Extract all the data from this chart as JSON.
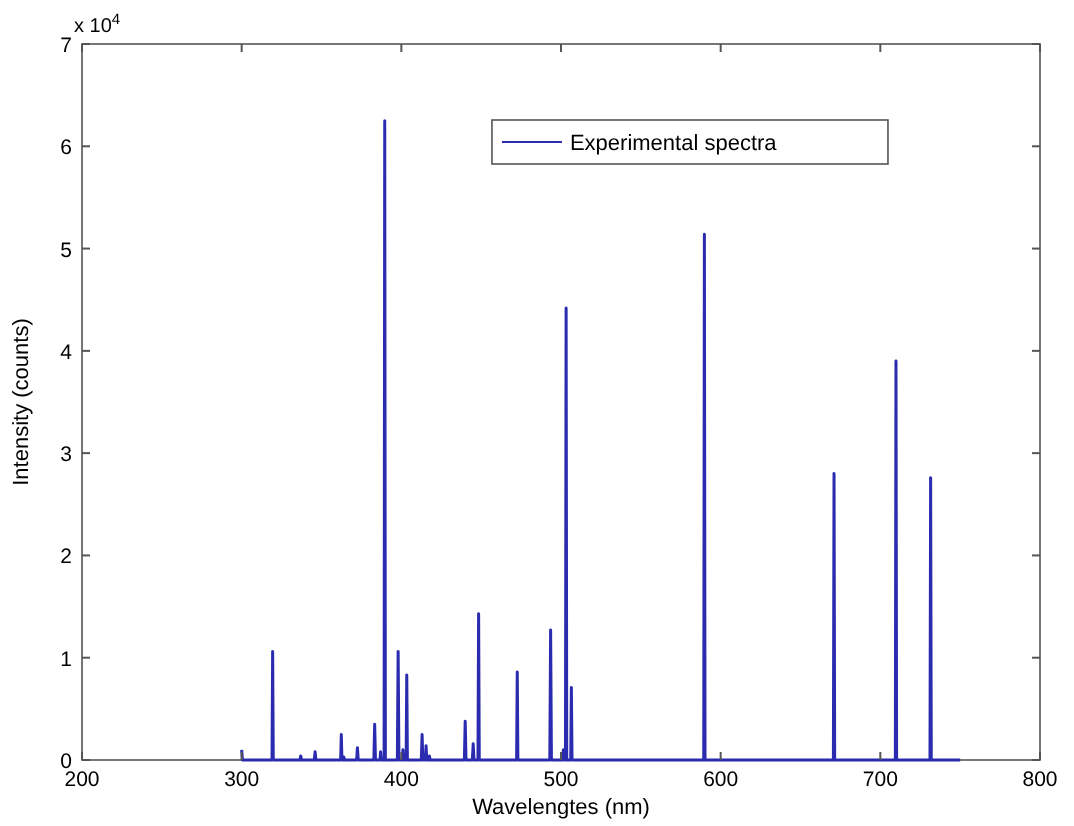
{
  "chart_data": {
    "type": "line",
    "xlabel": "Wavelengtes (nm)",
    "ylabel": "Intensity (counts)",
    "annotations": [
      "x 10$^{4}$"
    ],
    "legend": "top",
    "xlim": [
      200,
      800
    ],
    "xticks": [
      200,
      300,
      400,
      500,
      600,
      700,
      800
    ],
    "ylim": [
      0,
      7
    ],
    "yticks": [
      0,
      1,
      2,
      3,
      4,
      5,
      6,
      7
    ],
    "series": [
      {
        "name": "Experimental spectra",
        "color": "#2b2bb0",
        "x": [
          300,
          300.5,
          301,
          319,
          319.4,
          319.8,
          336.5,
          337,
          337.5,
          345.5,
          346,
          346.5,
          362,
          362.4,
          362.8,
          363.6,
          364,
          364.4,
          372,
          372.5,
          373,
          382.8,
          383.3,
          383.8,
          386.6,
          387,
          387.4,
          389.2,
          389.6,
          390,
          397.5,
          398,
          398.5,
          400.6,
          401,
          401.4,
          403,
          403.4,
          403.8,
          412.5,
          413,
          413.5,
          415.1,
          415.5,
          415.9,
          417.2,
          417.6,
          418,
          439.5,
          440,
          440.5,
          444.5,
          445,
          445.5,
          448,
          448.4,
          448.8,
          472.2,
          472.6,
          473,
          493,
          493.5,
          494,
          501.1,
          501.5,
          501.9,
          502.8,
          503.2,
          503.6,
          506.1,
          506.5,
          506.9,
          589.4,
          589.8,
          590.2,
          670.6,
          671,
          671.4,
          709.4,
          709.8,
          710.2,
          731.1,
          731.5,
          731.9,
          750
        ],
        "values": [
          0.1,
          0,
          0,
          0,
          1.06,
          0,
          0,
          0.04,
          0,
          0,
          0.08,
          0,
          0,
          0.25,
          0,
          0,
          0.03,
          0,
          0,
          0.12,
          0,
          0,
          0.35,
          0,
          0,
          0.08,
          0,
          0,
          6.25,
          0,
          0,
          1.06,
          0,
          0,
          0.1,
          0,
          0,
          0.83,
          0,
          0,
          0.25,
          0,
          0,
          0.14,
          0,
          0,
          0.04,
          0,
          0,
          0.38,
          0,
          0,
          0.16,
          0,
          0,
          1.43,
          0,
          0,
          0.86,
          0,
          0,
          1.27,
          0,
          0,
          0.1,
          0,
          0,
          4.42,
          0,
          0,
          0.71,
          0,
          0,
          5.14,
          0,
          0,
          2.8,
          0,
          0,
          3.9,
          0,
          0,
          2.76,
          0,
          0
        ]
      }
    ]
  }
}
